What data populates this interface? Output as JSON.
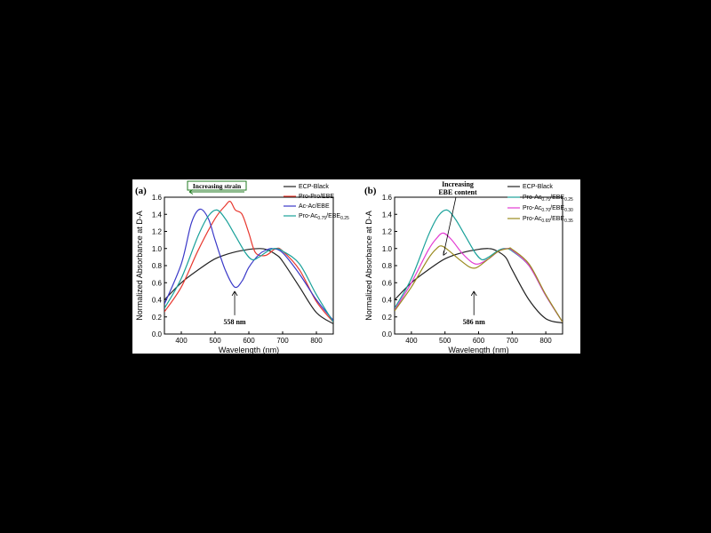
{
  "chart_data": [
    {
      "panel": "(a)",
      "type": "line",
      "xlabel": "Wavelength (nm)",
      "ylabel": "Normalized Absorbance at D-A",
      "xlim": [
        350,
        850
      ],
      "ylim": [
        0.0,
        1.6
      ],
      "xticks": [
        "400",
        "500",
        "600",
        "700",
        "800"
      ],
      "yticks": [
        "0.0",
        "0.2",
        "0.4",
        "0.6",
        "0.8",
        "1.0",
        "1.2",
        "1.4",
        "1.6"
      ],
      "legend_position": "top-right",
      "annotations": {
        "top": "Increasing strain",
        "bottom": "558 nm",
        "bottom_x": 558
      },
      "series": [
        {
          "name": "ECP-Black",
          "color": "#222222",
          "x": [
            350,
            400,
            450,
            500,
            550,
            600,
            630,
            650,
            680,
            700,
            750,
            800,
            850
          ],
          "y": [
            0.4,
            0.6,
            0.75,
            0.88,
            0.95,
            0.99,
            1.0,
            0.99,
            0.93,
            0.85,
            0.55,
            0.25,
            0.12
          ]
        },
        {
          "name": "Pro-Pro/EBE",
          "color": "#e8382f",
          "x": [
            350,
            400,
            450,
            500,
            530,
            545,
            560,
            580,
            600,
            620,
            650,
            680,
            700,
            750,
            800,
            850
          ],
          "y": [
            0.26,
            0.55,
            0.98,
            1.35,
            1.5,
            1.55,
            1.45,
            1.4,
            1.18,
            0.95,
            0.92,
            1.0,
            0.97,
            0.75,
            0.38,
            0.14
          ]
        },
        {
          "name": "Ac-Ac/EBE",
          "color": "#3a39c8",
          "x": [
            350,
            400,
            430,
            455,
            480,
            500,
            530,
            558,
            580,
            600,
            630,
            650,
            670,
            700,
            750,
            800,
            850
          ],
          "y": [
            0.35,
            0.82,
            1.3,
            1.46,
            1.35,
            1.1,
            0.75,
            0.55,
            0.62,
            0.78,
            0.93,
            0.98,
            1.0,
            0.95,
            0.7,
            0.4,
            0.16
          ]
        },
        {
          "name": "Pro-Ac0.75/EBE0.25",
          "label_main": "Pro-Ac",
          "label_sub1": "0.75",
          "label_mid": "/EBE",
          "label_sub2": "0.25",
          "color": "#1aa19a",
          "x": [
            350,
            400,
            450,
            480,
            505,
            530,
            560,
            590,
            610,
            630,
            660,
            680,
            700,
            750,
            800,
            850
          ],
          "y": [
            0.3,
            0.65,
            1.15,
            1.38,
            1.45,
            1.35,
            1.15,
            0.95,
            0.87,
            0.9,
            0.98,
            1.0,
            0.97,
            0.82,
            0.46,
            0.14
          ]
        }
      ]
    },
    {
      "panel": "(b)",
      "type": "line",
      "xlabel": "Wavelength (nm)",
      "ylabel": "Normalized Absorbance at D-A",
      "xlim": [
        350,
        850
      ],
      "ylim": [
        0.0,
        1.6
      ],
      "xticks": [
        "400",
        "500",
        "600",
        "700",
        "800"
      ],
      "yticks": [
        "0.0",
        "0.2",
        "0.4",
        "0.6",
        "0.8",
        "1.0",
        "1.2",
        "1.4",
        "1.6"
      ],
      "legend_position": "top-right",
      "annotations": {
        "top_line1": "Increasing",
        "top_line2": "EBE content",
        "bottom": "586 nm",
        "bottom_x": 586
      },
      "series": [
        {
          "name": "ECP-Black",
          "color": "#222222",
          "x": [
            350,
            400,
            450,
            500,
            550,
            600,
            630,
            650,
            680,
            700,
            750,
            800,
            850
          ],
          "y": [
            0.4,
            0.6,
            0.75,
            0.88,
            0.95,
            0.99,
            1.0,
            0.98,
            0.9,
            0.75,
            0.4,
            0.18,
            0.13
          ]
        },
        {
          "name": "Pro-Ac0.75/EBE0.25",
          "label_main": "Pro-Ac",
          "label_sub1": "0.75",
          "label_mid": "/EBE",
          "label_sub2": "0.25",
          "color": "#1aa19a",
          "x": [
            350,
            400,
            450,
            480,
            505,
            530,
            560,
            590,
            610,
            630,
            660,
            680,
            700,
            750,
            800,
            850
          ],
          "y": [
            0.3,
            0.65,
            1.15,
            1.38,
            1.45,
            1.35,
            1.15,
            0.95,
            0.87,
            0.9,
            0.98,
            1.0,
            0.97,
            0.8,
            0.45,
            0.14
          ]
        },
        {
          "name": "Pro-Ac0.70/EBE0.30",
          "label_main": "Pro-Ac",
          "label_sub1": "0.70",
          "label_mid": "/EBE",
          "label_sub2": "0.30",
          "color": "#e23ad2",
          "x": [
            350,
            400,
            450,
            475,
            495,
            520,
            550,
            580,
            600,
            630,
            660,
            685,
            700,
            750,
            800,
            850
          ],
          "y": [
            0.28,
            0.6,
            0.98,
            1.12,
            1.18,
            1.1,
            0.95,
            0.84,
            0.82,
            0.88,
            0.97,
            1.0,
            0.98,
            0.8,
            0.45,
            0.14
          ]
        },
        {
          "name": "Pro-Ac0.65/EBE0.35",
          "label_main": "Pro-Ac",
          "label_sub1": "0.65",
          "label_mid": "/EBE",
          "label_sub2": "0.35",
          "color": "#9a8a1e",
          "x": [
            350,
            400,
            450,
            475,
            490,
            510,
            540,
            570,
            586,
            600,
            630,
            660,
            690,
            700,
            750,
            800,
            850
          ],
          "y": [
            0.27,
            0.55,
            0.88,
            1.0,
            1.03,
            0.98,
            0.88,
            0.79,
            0.77,
            0.79,
            0.88,
            0.97,
            1.0,
            0.99,
            0.82,
            0.46,
            0.14
          ]
        }
      ]
    }
  ]
}
